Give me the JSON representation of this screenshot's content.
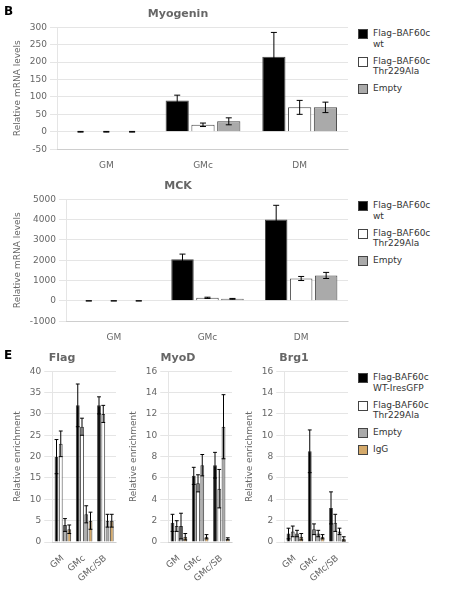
{
  "chart_data": [
    {
      "type": "bar",
      "title": "Myogenin",
      "ylabel": "Relative mRNA levels",
      "annotations": [
        "B"
      ],
      "categories": [
        "GM",
        "GMc",
        "DM"
      ],
      "series": [
        {
          "name": "Flag–BAF60c\nwt",
          "color": "#000000",
          "values": [
            0,
            90,
            215
          ],
          "errors": [
            1,
            15,
            70
          ]
        },
        {
          "name": "Flag–BAF60c\nThr229Ala",
          "color": "#ffffff",
          "values": [
            0,
            20,
            70
          ],
          "errors": [
            1,
            5,
            20
          ]
        },
        {
          "name": "Empty",
          "color": "#aaaaaa",
          "values": [
            0,
            30,
            70
          ],
          "errors": [
            1,
            10,
            15
          ]
        }
      ],
      "ylim": [
        -50,
        300
      ],
      "yticks": [
        -50,
        0,
        50,
        100,
        150,
        200,
        250,
        300
      ],
      "grid": true,
      "legend": "right"
    },
    {
      "type": "bar",
      "title": "MCK",
      "ylabel": "Relative mRNA levels",
      "categories": [
        "GM",
        "GMc",
        "DM"
      ],
      "series": [
        {
          "name": "Flag–BAF60c\nwt",
          "color": "#000000",
          "values": [
            0,
            2050,
            4000
          ],
          "errors": [
            1,
            250,
            700
          ]
        },
        {
          "name": "Flag–BAF60c\nThr229Ala",
          "color": "#ffffff",
          "values": [
            0,
            150,
            1100
          ],
          "errors": [
            1,
            30,
            100
          ]
        },
        {
          "name": "Empty",
          "color": "#aaaaaa",
          "values": [
            0,
            100,
            1250
          ],
          "errors": [
            1,
            20,
            150
          ]
        }
      ],
      "ylim": [
        -1000,
        5000
      ],
      "yticks": [
        -1000,
        0,
        1000,
        2000,
        3000,
        4000,
        5000
      ],
      "grid": true,
      "legend": "right"
    },
    {
      "type": "bar",
      "title": "Flag",
      "ylabel": "Relative enrichment",
      "annotations": [
        "E"
      ],
      "categories": [
        "GM",
        "GMc",
        "GMc/SB"
      ],
      "series": [
        {
          "name": "Flag-BAF60c\nWT-IresGFP",
          "color": "#000000",
          "values": [
            20,
            32,
            32
          ],
          "errors": [
            4,
            5,
            2
          ]
        },
        {
          "name": "Flag-BAF60c\nThr229Ala",
          "color": "#ffffff",
          "values": [
            23,
            27,
            30
          ],
          "errors": [
            3,
            2,
            2
          ]
        },
        {
          "name": "Empty",
          "color": "#aaaaaa",
          "values": [
            4,
            6.5,
            5
          ],
          "errors": [
            1.5,
            2,
            1.5
          ]
        },
        {
          "name": "IgG",
          "color": "#d4a96a",
          "values": [
            3,
            5,
            5
          ],
          "errors": [
            1,
            2,
            1.5
          ]
        }
      ],
      "ylim": [
        0,
        40
      ],
      "yticks": [
        0,
        5,
        10,
        15,
        20,
        25,
        30,
        35,
        40
      ],
      "grid": true
    },
    {
      "type": "bar",
      "title": "MyoD",
      "ylabel": "Relative enrichment",
      "categories": [
        "GM",
        "GMc",
        "GMc/SB"
      ],
      "series": [
        {
          "name": "Flag-BAF60c\nWT-IresGFP",
          "color": "#000000",
          "values": [
            1.8,
            6.2,
            7.2
          ],
          "errors": [
            0.8,
            0.8,
            1.2
          ]
        },
        {
          "name": "Flag-BAF60c\nThr229Ala",
          "color": "#ffffff",
          "values": [
            1.5,
            5.5,
            5.0
          ],
          "errors": [
            0.5,
            0.8,
            1.8
          ]
        },
        {
          "name": "Empty",
          "color": "#aaaaaa",
          "values": [
            1.5,
            7.2,
            10.8
          ],
          "errors": [
            1.2,
            1.0,
            3.0
          ]
        },
        {
          "name": "IgG",
          "color": "#d4a96a",
          "values": [
            0.5,
            0.5,
            0.3
          ],
          "errors": [
            0.3,
            0.2,
            0.1
          ]
        }
      ],
      "ylim": [
        0,
        16
      ],
      "yticks": [
        0,
        2,
        4,
        6,
        8,
        10,
        12,
        14,
        16
      ],
      "grid": true
    },
    {
      "type": "bar",
      "title": "Brg1",
      "ylabel": "Relative enrichment",
      "categories": [
        "GM",
        "GMc",
        "GMc/SB"
      ],
      "series": [
        {
          "name": "Flag-BAF60c\nWT-IresGFP",
          "color": "#000000",
          "values": [
            0.8,
            8.5,
            3.2
          ],
          "errors": [
            0.5,
            2.0,
            1.5
          ]
        },
        {
          "name": "Flag-BAF60c\nThr229Ala",
          "color": "#ffffff",
          "values": [
            1.0,
            1.2,
            1.8
          ],
          "errors": [
            0.5,
            0.5,
            0.8
          ]
        },
        {
          "name": "Empty",
          "color": "#aaaaaa",
          "values": [
            0.8,
            0.8,
            1.0
          ],
          "errors": [
            0.3,
            0.3,
            0.3
          ]
        },
        {
          "name": "IgG",
          "color": "#d4a96a",
          "values": [
            0.5,
            0.5,
            0.3
          ],
          "errors": [
            0.3,
            0.2,
            0.2
          ]
        }
      ],
      "ylim": [
        0,
        16
      ],
      "yticks": [
        0,
        2,
        4,
        6,
        8,
        10,
        12,
        14,
        16
      ],
      "grid": true,
      "legend": "right"
    }
  ]
}
